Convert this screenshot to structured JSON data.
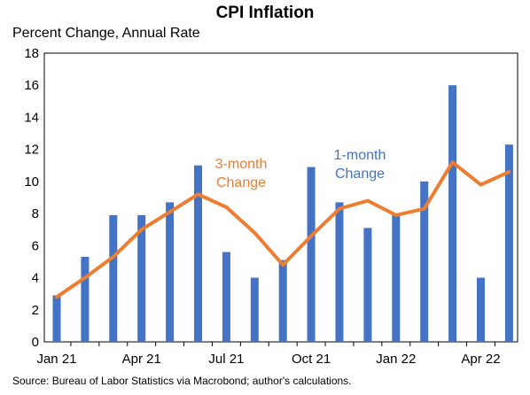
{
  "chart_data": {
    "type": "bar+line",
    "title": "CPI Inflation",
    "ylabel": "Percent Change, Annual Rate",
    "source": "Source: Bureau of Labor Statistics via Macrobond; author's calculations.",
    "ylim": [
      0,
      18
    ],
    "yticks": [
      0,
      2,
      4,
      6,
      8,
      10,
      12,
      14,
      16,
      18
    ],
    "xtick_labels": [
      "Jan 21",
      "Apr 21",
      "Jul 21",
      "Oct 21",
      "Jan 22",
      "Apr 22"
    ],
    "xtick_index": [
      0,
      3,
      6,
      9,
      12,
      15
    ],
    "categories": [
      "Jan 21",
      "Feb 21",
      "Mar 21",
      "Apr 21",
      "May 21",
      "Jun 21",
      "Jul 21",
      "Aug 21",
      "Sep 21",
      "Oct 21",
      "Nov 21",
      "Dec 21",
      "Jan 22",
      "Feb 22",
      "Mar 22",
      "Apr 22",
      "May 22"
    ],
    "series": [
      {
        "name": "1-month Change",
        "kind": "bar",
        "color": "#4472C4",
        "values": [
          2.9,
          5.3,
          7.9,
          7.9,
          8.7,
          11.0,
          5.6,
          4.0,
          5.1,
          10.9,
          8.7,
          7.1,
          7.9,
          10.0,
          16.0,
          4.0,
          12.3
        ]
      },
      {
        "name": "3-month Change",
        "kind": "line",
        "color": "#ED7D31",
        "values": [
          2.8,
          4.0,
          5.3,
          7.0,
          8.1,
          9.2,
          8.4,
          6.8,
          4.8,
          6.6,
          8.3,
          8.8,
          7.9,
          8.3,
          11.2,
          9.8,
          10.6
        ]
      }
    ],
    "annotations": [
      {
        "text_lines": [
          "3-month",
          "Change"
        ],
        "color": "#ED7D31"
      },
      {
        "text_lines": [
          "1-month",
          "Change"
        ],
        "color": "#4472C4"
      }
    ]
  }
}
